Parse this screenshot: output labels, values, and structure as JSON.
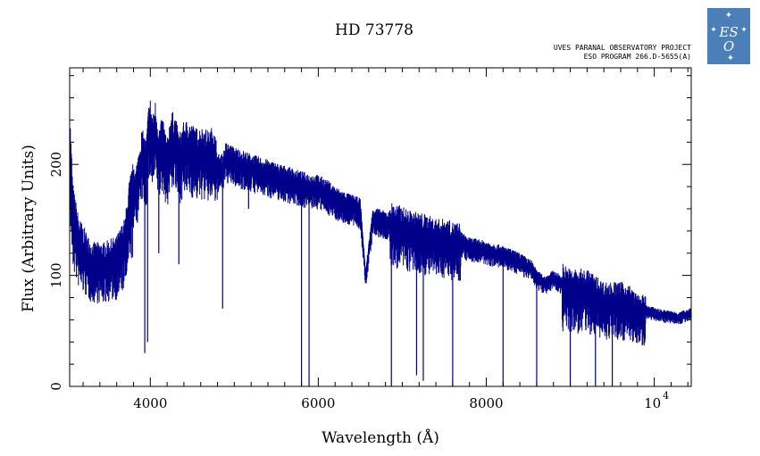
{
  "header": {
    "title": "HD 73778",
    "credit_line1": "UVES PARANAL OBSERVATORY PROJECT",
    "credit_line2": "ESO PROGRAM 266.D-5655(A)"
  },
  "logo": {
    "name": "eso-logo",
    "text": "ESO",
    "color": "#4a7fb8"
  },
  "colors": {
    "spectrum": "#00008b",
    "axes": "#000000",
    "background": "#ffffff"
  },
  "chart_data": {
    "type": "line",
    "title": "HD 73778",
    "xlabel": "Wavelength (Å)",
    "ylabel": "Flux (Arbitrary Units)",
    "xlim": [
      3040,
      10440
    ],
    "ylim": [
      0,
      287
    ],
    "grid": false,
    "legend": "none",
    "x_ticks": [
      {
        "value": 4000,
        "label": "4000"
      },
      {
        "value": 6000,
        "label": "6000"
      },
      {
        "value": 8000,
        "label": "8000"
      }
    ],
    "x_tick_power": {
      "value": 10000,
      "base": "10",
      "exponent": "4"
    },
    "y_ticks": [
      {
        "value": 0,
        "label": "0"
      },
      {
        "value": 100,
        "label": "100"
      },
      {
        "value": 200,
        "label": "200"
      }
    ],
    "series": [
      {
        "x": [
          3040,
          3080,
          3150,
          3300,
          3450,
          3600,
          3700,
          3750,
          3800,
          3850,
          3900,
          3950,
          3980,
          4000,
          4030,
          4060,
          4100,
          4150,
          4200,
          4250,
          4300,
          4340,
          4400,
          4450,
          4500,
          4550,
          4600,
          4650,
          4700,
          4750,
          4800,
          4861,
          4900,
          4950,
          5000,
          5200,
          5400,
          5600,
          5800,
          5900,
          6000,
          6100,
          6200,
          6300,
          6400,
          6500,
          6563,
          6650,
          6750,
          6860,
          6950,
          7100,
          7250,
          7350,
          7450,
          7500,
          7600,
          7700,
          7800,
          7900,
          8000,
          8100,
          8200,
          8300,
          8400,
          8500,
          8550,
          8600,
          8700,
          8800,
          8900,
          9000,
          9100,
          9200,
          9300,
          9400,
          9500,
          9600,
          9700,
          9800,
          9900,
          10000,
          10100,
          10200,
          10300,
          10440
        ],
        "y": [
          225,
          160,
          135,
          115,
          115,
          120,
          135,
          165,
          180,
          190,
          215,
          205,
          235,
          240,
          225,
          238,
          215,
          225,
          205,
          230,
          225,
          210,
          220,
          222,
          218,
          215,
          216,
          215,
          212,
          218,
          200,
          200,
          210,
          208,
          206,
          200,
          195,
          190,
          185,
          183,
          182,
          178,
          172,
          168,
          165,
          162,
          100,
          155,
          152,
          150,
          148,
          143,
          141,
          138,
          136,
          137,
          134,
          133,
          128,
          127,
          125,
          123,
          121,
          118,
          115,
          110,
          108,
          100,
          95,
          100,
          95,
          90,
          90,
          90,
          85,
          80,
          80,
          80,
          78,
          70,
          70,
          68,
          66,
          65,
          64,
          68
        ]
      }
    ],
    "absorption_features": [
      {
        "x": 3934,
        "depth_to": 30
      },
      {
        "x": 3968,
        "depth_to": 40
      },
      {
        "x": 4101,
        "depth_to": 120
      },
      {
        "x": 4340,
        "depth_to": 110
      },
      {
        "x": 4861,
        "depth_to": 70
      },
      {
        "x": 5170,
        "depth_to": 160
      },
      {
        "x": 5800,
        "depth_to": 0
      },
      {
        "x": 5890,
        "depth_to": 0
      },
      {
        "x": 6563,
        "depth_to": 100
      },
      {
        "x": 6870,
        "depth_to": 0
      },
      {
        "x": 7170,
        "depth_to": 10
      },
      {
        "x": 7250,
        "depth_to": 5
      },
      {
        "x": 7600,
        "depth_to": 0
      },
      {
        "x": 8200,
        "depth_to": 0
      },
      {
        "x": 8600,
        "depth_to": 0
      },
      {
        "x": 9000,
        "depth_to": 0
      },
      {
        "x": 9300,
        "depth_to": 0
      },
      {
        "x": 9500,
        "depth_to": 0
      }
    ]
  }
}
